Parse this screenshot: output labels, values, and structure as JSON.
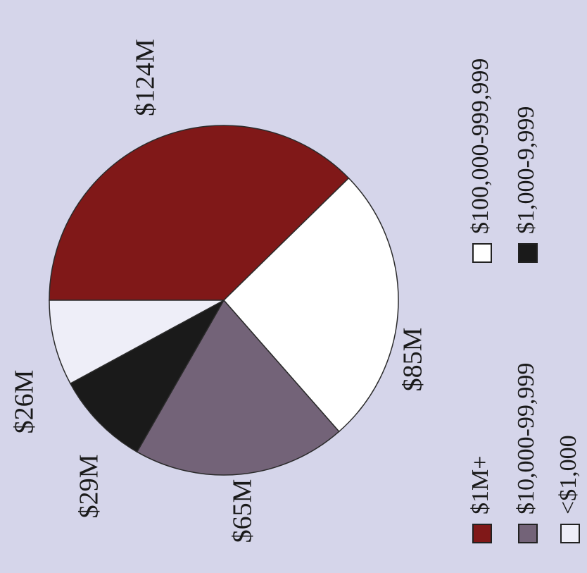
{
  "chart_data": {
    "type": "pie",
    "title": "",
    "slices": [
      {
        "label": "$1M+",
        "value": 124,
        "value_label": "$124M",
        "color": "#801818"
      },
      {
        "label": "$100,000-999,999",
        "value": 85,
        "value_label": "$85M",
        "color": "#ffffff"
      },
      {
        "label": "$10,000-99,999",
        "value": 65,
        "value_label": "$65M",
        "color": "#736378"
      },
      {
        "label": "$1,000-9,999",
        "value": 29,
        "value_label": "$29M",
        "color": "#1a1a1a"
      },
      {
        "label": "<$1,000",
        "value": 26,
        "value_label": "$26M",
        "color": "#eeeef8"
      }
    ],
    "value_unit": "$M",
    "legend_position": "bottom",
    "orientation": "rotated 90° counter-clockwise"
  }
}
